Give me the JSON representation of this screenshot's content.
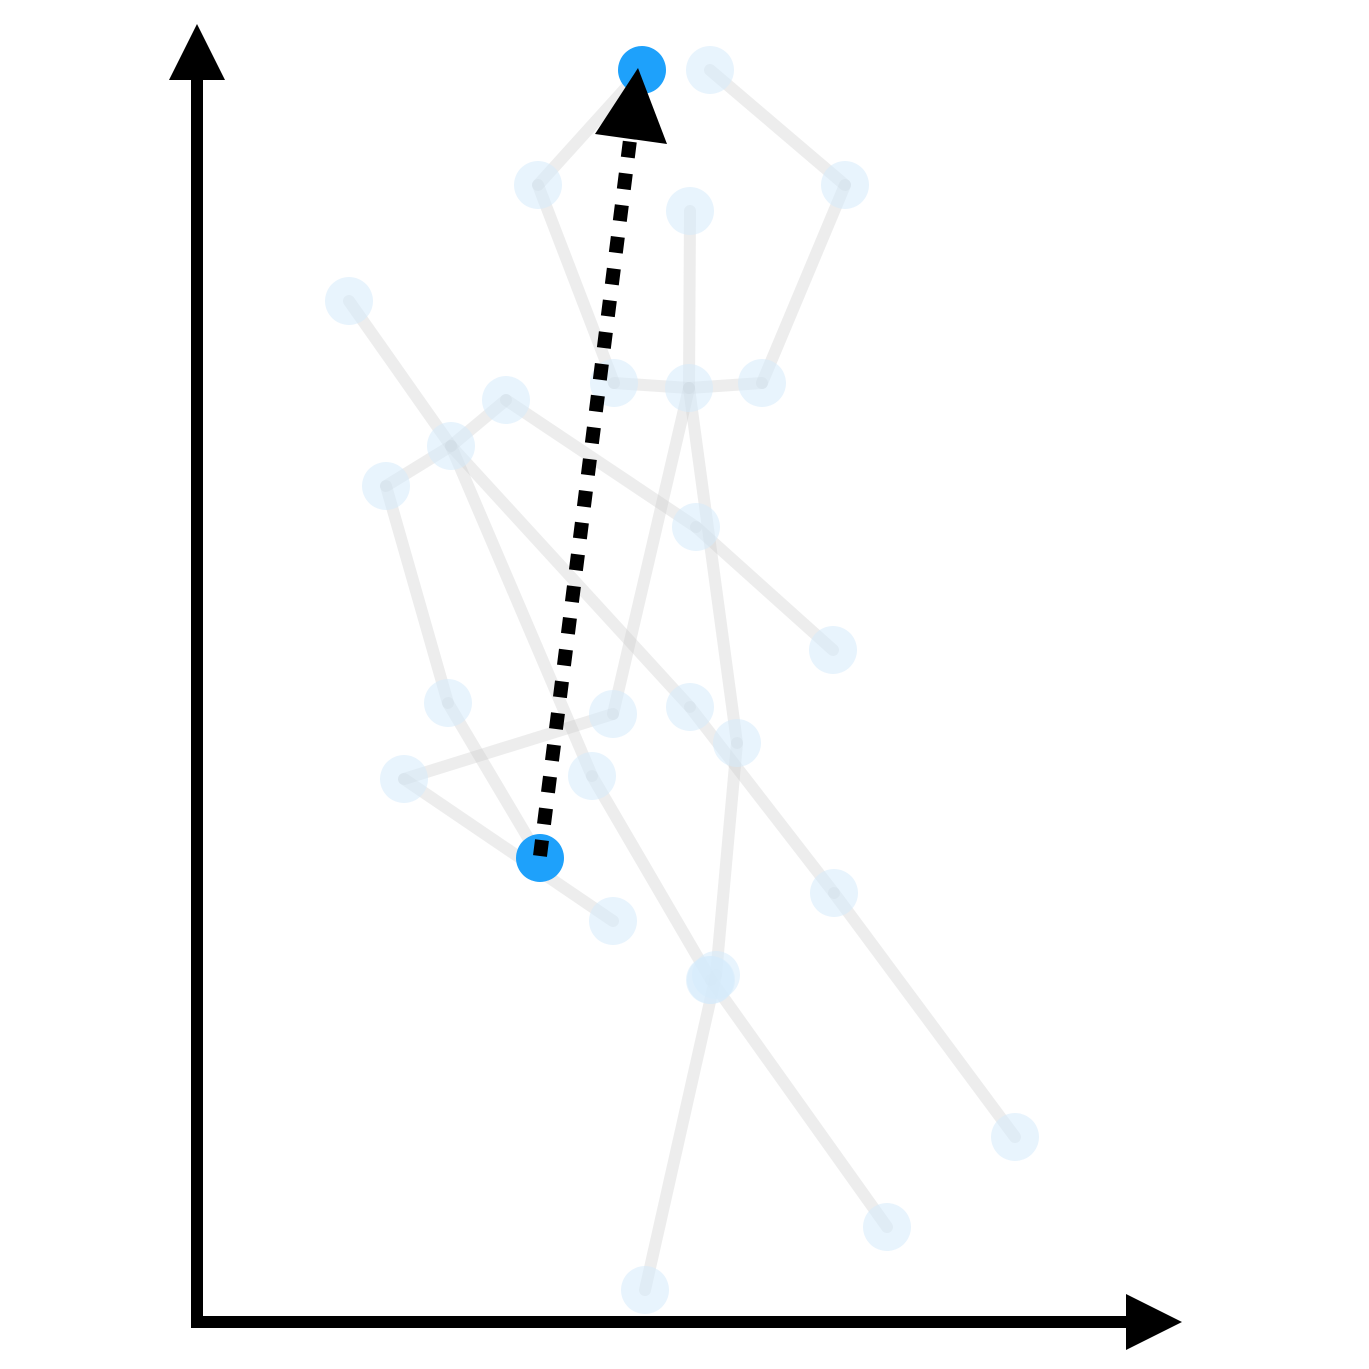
{
  "title": "",
  "colors": {
    "background": "#ffffff",
    "bone": "#cccccc",
    "joint": "#d6ebfb",
    "highlight_joint": "#1ea1fb",
    "axis": "#000000",
    "motion_arrow": "#000000"
  },
  "axes": {
    "x_label": "",
    "y_label": ""
  },
  "skeletons": [
    {
      "name": "",
      "joint_count": 17
    },
    {
      "name": "",
      "joint_count": 17
    }
  ],
  "motion": {
    "style": "dotted",
    "direction": "up",
    "from_joint": "lower-highlighted-joint",
    "to_joint": "upper-highlighted-joint"
  }
}
